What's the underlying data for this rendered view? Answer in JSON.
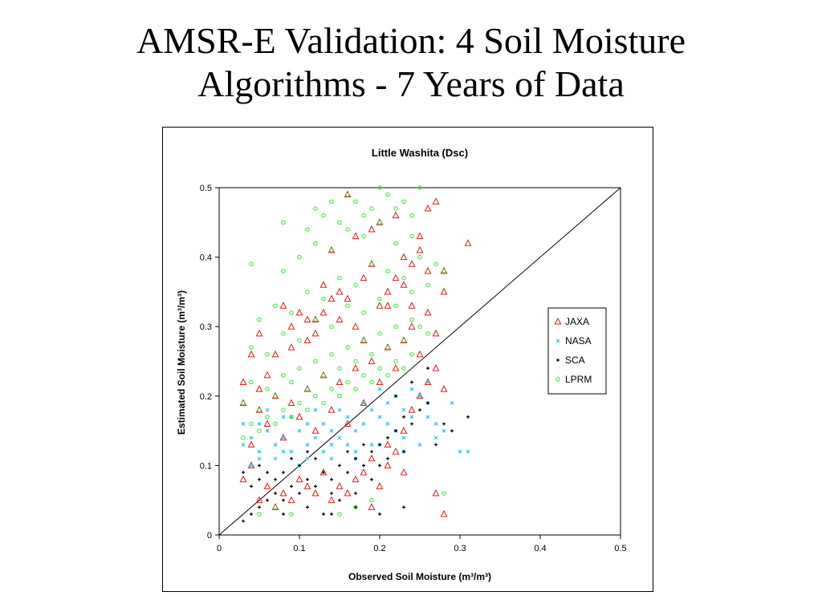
{
  "slide": {
    "title_line1": "AMSR-E Validation: 4 Soil Moisture",
    "title_line2": "Algorithms - 7 Years of Data"
  },
  "chart_data": {
    "type": "scatter",
    "title": "Little Washita (Dsc)",
    "xlabel": "Observed Soil Moisture (m³/m³)",
    "ylabel": "Estimated Soil Moisture (m³/m³)",
    "xlim": [
      0,
      0.5
    ],
    "ylim": [
      0,
      0.5
    ],
    "xticks": [
      0,
      0.1,
      0.2,
      0.3,
      0.4,
      0.5
    ],
    "yticks": [
      0,
      0.1,
      0.2,
      0.3,
      0.4,
      0.5
    ],
    "xtick_labels": [
      "0",
      "0.1",
      "0.2",
      "0.3",
      "0.4",
      "0.5"
    ],
    "ytick_labels": [
      "0",
      "0.1",
      "0.2",
      "0.3",
      "0.4",
      "0.5"
    ],
    "grid": false,
    "legend_position": "right",
    "reference_line": {
      "type": "1:1",
      "from": [
        0,
        0
      ],
      "to": [
        0.5,
        0.5
      ]
    },
    "series": [
      {
        "name": "JAXA",
        "marker": "triangle-open",
        "color": "#e41a1c",
        "x": [
          0.03,
          0.03,
          0.04,
          0.04,
          0.05,
          0.05,
          0.06,
          0.06,
          0.07,
          0.08,
          0.09,
          0.1,
          0.11,
          0.12,
          0.13,
          0.14,
          0.15,
          0.16,
          0.17,
          0.18,
          0.19,
          0.2,
          0.21,
          0.22,
          0.23,
          0.24,
          0.25,
          0.26,
          0.27,
          0.28,
          0.03,
          0.05,
          0.07,
          0.09,
          0.11,
          0.13,
          0.15,
          0.17,
          0.19,
          0.21,
          0.23,
          0.25,
          0.04,
          0.06,
          0.08,
          0.1,
          0.12,
          0.14,
          0.16,
          0.18,
          0.2,
          0.22,
          0.24,
          0.26,
          0.28,
          0.05,
          0.08,
          0.11,
          0.14,
          0.17,
          0.2,
          0.23,
          0.26,
          0.09,
          0.12,
          0.15,
          0.18,
          0.21,
          0.24,
          0.27,
          0.1,
          0.13,
          0.16,
          0.19,
          0.22,
          0.25,
          0.28,
          0.31,
          0.14,
          0.17,
          0.2,
          0.23,
          0.26,
          0.12,
          0.15,
          0.18,
          0.21,
          0.24,
          0.27,
          0.16,
          0.19,
          0.22,
          0.25,
          0.07,
          0.09,
          0.11,
          0.13,
          0.19,
          0.21,
          0.23,
          0.27,
          0.28
        ],
        "y": [
          0.08,
          0.19,
          0.1,
          0.26,
          0.05,
          0.21,
          0.07,
          0.23,
          0.04,
          0.06,
          0.05,
          0.08,
          0.07,
          0.06,
          0.09,
          0.05,
          0.07,
          0.06,
          0.08,
          0.09,
          0.04,
          0.07,
          0.1,
          0.12,
          0.15,
          0.18,
          0.2,
          0.22,
          0.24,
          0.21,
          0.22,
          0.18,
          0.2,
          0.19,
          0.21,
          0.23,
          0.22,
          0.24,
          0.25,
          0.27,
          0.28,
          0.26,
          0.13,
          0.16,
          0.14,
          0.17,
          0.15,
          0.18,
          0.16,
          0.19,
          0.22,
          0.24,
          0.3,
          0.32,
          0.35,
          0.29,
          0.33,
          0.31,
          0.34,
          0.3,
          0.33,
          0.36,
          0.38,
          0.27,
          0.29,
          0.31,
          0.28,
          0.35,
          0.33,
          0.29,
          0.32,
          0.36,
          0.34,
          0.39,
          0.37,
          0.41,
          0.38,
          0.42,
          0.41,
          0.43,
          0.45,
          0.4,
          0.47,
          0.31,
          0.35,
          0.37,
          0.33,
          0.39,
          0.48,
          0.49,
          0.44,
          0.46,
          0.43,
          0.26,
          0.3,
          0.28,
          0.32,
          0.11,
          0.13,
          0.09,
          0.06,
          0.03
        ]
      },
      {
        "name": "NASA",
        "marker": "x",
        "color": "#1fc8e8",
        "x": [
          0.03,
          0.04,
          0.05,
          0.06,
          0.07,
          0.08,
          0.09,
          0.1,
          0.11,
          0.12,
          0.13,
          0.14,
          0.15,
          0.16,
          0.17,
          0.18,
          0.19,
          0.2,
          0.21,
          0.22,
          0.23,
          0.24,
          0.25,
          0.26,
          0.27,
          0.28,
          0.3,
          0.31,
          0.03,
          0.05,
          0.07,
          0.09,
          0.11,
          0.13,
          0.15,
          0.17,
          0.19,
          0.21,
          0.23,
          0.25,
          0.27,
          0.04,
          0.06,
          0.08,
          0.1,
          0.12,
          0.14,
          0.16,
          0.18,
          0.2,
          0.22,
          0.24,
          0.26,
          0.05,
          0.08,
          0.11,
          0.14,
          0.17,
          0.2,
          0.23,
          0.26,
          0.29
        ],
        "y": [
          0.13,
          0.14,
          0.12,
          0.15,
          0.13,
          0.14,
          0.12,
          0.15,
          0.13,
          0.14,
          0.16,
          0.15,
          0.14,
          0.17,
          0.15,
          0.16,
          0.18,
          0.17,
          0.16,
          0.15,
          0.18,
          0.17,
          0.2,
          0.19,
          0.16,
          0.15,
          0.12,
          0.12,
          0.16,
          0.16,
          0.11,
          0.17,
          0.11,
          0.12,
          0.18,
          0.12,
          0.13,
          0.19,
          0.14,
          0.13,
          0.14,
          0.1,
          0.18,
          0.17,
          0.1,
          0.18,
          0.11,
          0.13,
          0.19,
          0.13,
          0.2,
          0.21,
          0.17,
          0.11,
          0.12,
          0.16,
          0.13,
          0.11,
          0.21,
          0.12,
          0.22,
          0.19
        ]
      },
      {
        "name": "SCA",
        "marker": "plus",
        "color": "#000000",
        "x": [
          0.03,
          0.04,
          0.05,
          0.06,
          0.07,
          0.08,
          0.09,
          0.1,
          0.11,
          0.12,
          0.13,
          0.14,
          0.15,
          0.16,
          0.17,
          0.18,
          0.19,
          0.2,
          0.21,
          0.22,
          0.23,
          0.24,
          0.25,
          0.26,
          0.27,
          0.28,
          0.29,
          0.31,
          0.03,
          0.05,
          0.07,
          0.09,
          0.11,
          0.13,
          0.15,
          0.17,
          0.19,
          0.21,
          0.23,
          0.04,
          0.06,
          0.08,
          0.1,
          0.12,
          0.14,
          0.16,
          0.18,
          0.2,
          0.22,
          0.24,
          0.26,
          0.05,
          0.08,
          0.11,
          0.14,
          0.17,
          0.2,
          0.23
        ],
        "y": [
          0.02,
          0.03,
          0.04,
          0.05,
          0.06,
          0.05,
          0.07,
          0.06,
          0.08,
          0.07,
          0.09,
          0.08,
          0.1,
          0.09,
          0.11,
          0.1,
          0.12,
          0.13,
          0.14,
          0.15,
          0.17,
          0.16,
          0.18,
          0.19,
          0.13,
          0.16,
          0.15,
          0.17,
          0.09,
          0.1,
          0.08,
          0.11,
          0.04,
          0.03,
          0.05,
          0.06,
          0.08,
          0.11,
          0.12,
          0.07,
          0.09,
          0.03,
          0.1,
          0.11,
          0.06,
          0.12,
          0.13,
          0.1,
          0.2,
          0.22,
          0.24,
          0.08,
          0.09,
          0.12,
          0.03,
          0.04,
          0.03,
          0.04
        ]
      },
      {
        "name": "LPRM",
        "marker": "circle-open",
        "color": "#2ee62e",
        "x": [
          0.03,
          0.04,
          0.05,
          0.06,
          0.07,
          0.08,
          0.09,
          0.1,
          0.11,
          0.12,
          0.13,
          0.14,
          0.15,
          0.16,
          0.17,
          0.18,
          0.19,
          0.2,
          0.21,
          0.22,
          0.23,
          0.24,
          0.25,
          0.26,
          0.03,
          0.04,
          0.05,
          0.06,
          0.07,
          0.08,
          0.09,
          0.1,
          0.11,
          0.12,
          0.13,
          0.14,
          0.15,
          0.16,
          0.17,
          0.18,
          0.19,
          0.2,
          0.21,
          0.22,
          0.23,
          0.24,
          0.04,
          0.06,
          0.08,
          0.1,
          0.12,
          0.14,
          0.16,
          0.18,
          0.2,
          0.22,
          0.24,
          0.26,
          0.05,
          0.07,
          0.09,
          0.11,
          0.13,
          0.15,
          0.17,
          0.19,
          0.21,
          0.23,
          0.25,
          0.27,
          0.08,
          0.1,
          0.12,
          0.14,
          0.16,
          0.18,
          0.2,
          0.22,
          0.24,
          0.11,
          0.13,
          0.15,
          0.17,
          0.19,
          0.21,
          0.23,
          0.25,
          0.04,
          0.08,
          0.12,
          0.14,
          0.16,
          0.18,
          0.2,
          0.22,
          0.24,
          0.28,
          0.05,
          0.07,
          0.09,
          0.15,
          0.17,
          0.19,
          0.28
        ],
        "y": [
          0.19,
          0.22,
          0.18,
          0.21,
          0.2,
          0.23,
          0.22,
          0.24,
          0.21,
          0.25,
          0.23,
          0.26,
          0.24,
          0.27,
          0.25,
          0.28,
          0.26,
          0.29,
          0.27,
          0.3,
          0.28,
          0.31,
          0.3,
          0.29,
          0.14,
          0.16,
          0.15,
          0.17,
          0.16,
          0.18,
          0.17,
          0.19,
          0.18,
          0.2,
          0.19,
          0.21,
          0.2,
          0.22,
          0.21,
          0.23,
          0.22,
          0.24,
          0.23,
          0.25,
          0.24,
          0.26,
          0.27,
          0.26,
          0.29,
          0.28,
          0.31,
          0.3,
          0.33,
          0.32,
          0.34,
          0.33,
          0.35,
          0.36,
          0.31,
          0.33,
          0.32,
          0.35,
          0.34,
          0.37,
          0.36,
          0.39,
          0.38,
          0.37,
          0.4,
          0.39,
          0.38,
          0.4,
          0.42,
          0.41,
          0.44,
          0.43,
          0.45,
          0.42,
          0.46,
          0.44,
          0.46,
          0.45,
          0.48,
          0.47,
          0.49,
          0.48,
          0.5,
          0.39,
          0.45,
          0.47,
          0.48,
          0.49,
          0.46,
          0.5,
          0.47,
          0.43,
          0.38,
          0.03,
          0.04,
          0.03,
          0.03,
          0.04,
          0.05,
          0.06
        ]
      }
    ]
  }
}
